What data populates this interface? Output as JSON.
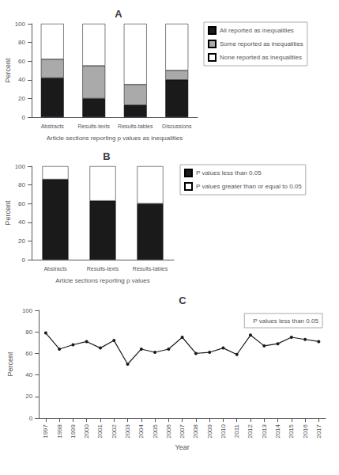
{
  "chart_data": [
    {
      "type": "bar",
      "title": "A",
      "categories": [
        "Abstracts",
        "Results-texts",
        "Results-tables",
        "Discussions"
      ],
      "series": [
        {
          "name": "All reported as inequalities",
          "color": "#1a1a1a",
          "values": [
            42,
            20,
            13,
            40
          ]
        },
        {
          "name": "Some reported as inequalities",
          "color": "#aaaaaa",
          "values": [
            20,
            35,
            22,
            10
          ]
        },
        {
          "name": "None reported as inequalities",
          "color": "#ffffff",
          "values": [
            38,
            45,
            65,
            50
          ]
        }
      ],
      "stacked": true,
      "ylabel": "Percent",
      "xlabel": "Article sections reporting p values as inequalities",
      "ylim": [
        0,
        100
      ],
      "yticks": [
        0,
        20,
        40,
        60,
        80,
        100
      ],
      "grid": false,
      "legend": "right"
    },
    {
      "type": "bar",
      "title": "B",
      "categories": [
        "Abstracts",
        "Results-texts",
        "Results-tables"
      ],
      "series": [
        {
          "name": "P values less than 0.05",
          "color": "#1a1a1a",
          "values": [
            86,
            63,
            60
          ]
        },
        {
          "name": "P values greater than or equal to 0.05",
          "color": "#ffffff",
          "values": [
            14,
            37,
            40
          ]
        }
      ],
      "stacked": true,
      "ylabel": "Percent",
      "xlabel": "Article sections reporting p values",
      "ylim": [
        0,
        100
      ],
      "yticks": [
        0,
        20,
        40,
        60,
        80,
        100
      ],
      "grid": false,
      "legend": "right"
    },
    {
      "type": "line",
      "title": "C",
      "x": [
        1997,
        1998,
        1999,
        2000,
        2001,
        2002,
        2003,
        2004,
        2005,
        2006,
        2007,
        2008,
        2009,
        2010,
        2011,
        2012,
        2013,
        2014,
        2015,
        2016,
        2017
      ],
      "series": [
        {
          "name": "P values less than 0.05",
          "color": "#1a1a1a",
          "marker": "circle",
          "line_style": "solid",
          "values": [
            79,
            64,
            68,
            71,
            65,
            72,
            50,
            64,
            61,
            64,
            75,
            60,
            61,
            65,
            59,
            77,
            67,
            69,
            75,
            73,
            71
          ]
        }
      ],
      "ylabel": "Percent",
      "xlabel": "Year",
      "xlim": [
        1996.5,
        2017.5
      ],
      "xticks": [
        1997,
        1998,
        1999,
        2000,
        2001,
        2002,
        2003,
        2004,
        2005,
        2006,
        2007,
        2008,
        2009,
        2010,
        2011,
        2012,
        2013,
        2014,
        2015,
        2016,
        2017
      ],
      "ylim": [
        0,
        100
      ],
      "yticks": [
        0,
        20,
        40,
        60,
        80,
        100
      ],
      "grid": false,
      "legend": "upper right"
    }
  ]
}
